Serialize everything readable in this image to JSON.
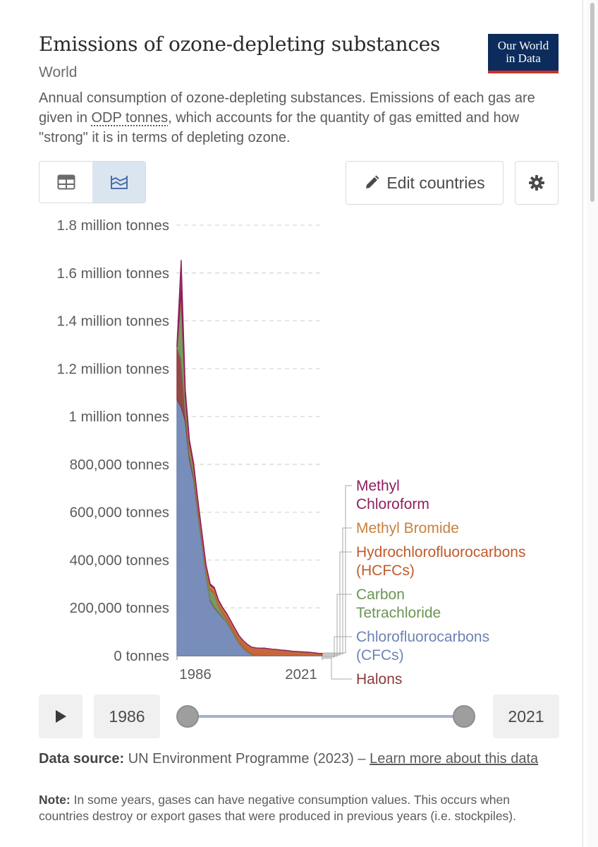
{
  "header": {
    "title": "Emissions of ozone-depleting substances",
    "entity": "World",
    "description_pre": "Annual consumption of ozone-depleting substances. Emissions of each gas are given in ",
    "description_link": "ODP tonnes",
    "description_post": ", which accounts for the quantity of gas emitted and how \"strong\" it is in terms of depleting ozone.",
    "logo_line1": "Our World",
    "logo_line2": "in Data"
  },
  "controls": {
    "edit_countries_label": "Edit countries",
    "table_icon": "table-icon",
    "chart_icon": "stacked-area-chart-icon",
    "edit_icon": "pencil-icon",
    "settings_icon": "gear-icon"
  },
  "chart_data": {
    "type": "area",
    "stacked": true,
    "x": [
      1986,
      1987,
      1988,
      1989,
      1990,
      1991,
      1992,
      1993,
      1994,
      1995,
      1996,
      1997,
      1998,
      1999,
      2000,
      2001,
      2002,
      2003,
      2004,
      2005,
      2006,
      2007,
      2008,
      2009,
      2010,
      2011,
      2012,
      2013,
      2014,
      2015,
      2016,
      2017,
      2018,
      2019,
      2020,
      2021
    ],
    "y_ticks": [
      "0 tonnes",
      "200,000 tonnes",
      "400,000 tonnes",
      "600,000 tonnes",
      "800,000 tonnes",
      "1 million tonnes",
      "1.2 million tonnes",
      "1.4 million tonnes",
      "1.6 million tonnes",
      "1.8 million tonnes"
    ],
    "x_ticks": [
      "1986",
      "2021"
    ],
    "ylim": [
      0,
      1800000
    ],
    "grid": "horizontal dashed",
    "legend": "right, inline labels",
    "series": [
      {
        "name": "Chlorofluorocarbons (CFCs)",
        "label_lines": [
          "Chlorofluorocarbons",
          "(CFCs)"
        ],
        "color": "#6d83b3",
        "values": [
          1070000,
          1040000,
          980000,
          820000,
          740000,
          600000,
          470000,
          340000,
          230000,
          200000,
          180000,
          160000,
          140000,
          110000,
          80000,
          50000,
          30000,
          15000,
          5000,
          1000,
          0,
          0,
          0,
          0,
          0,
          0,
          0,
          0,
          0,
          0,
          0,
          0,
          0,
          0,
          0,
          0
        ]
      },
      {
        "name": "Halons",
        "label_lines": [
          "Halons"
        ],
        "color": "#8c3a3a",
        "values": [
          220000,
          200000,
          40000,
          20000,
          15000,
          12000,
          8000,
          6000,
          5000,
          4000,
          3000,
          2500,
          2000,
          1800,
          1500,
          1200,
          1000,
          800,
          600,
          500,
          400,
          300,
          200,
          150,
          100,
          80,
          60,
          50,
          40,
          30,
          20,
          20,
          15,
          10,
          10,
          10
        ]
      },
      {
        "name": "Carbon Tetrachloride",
        "label_lines": [
          "Carbon",
          "Tetrachloride"
        ],
        "color": "#6b9456",
        "values": [
          0,
          260000,
          50000,
          30000,
          25000,
          18000,
          14000,
          10000,
          40000,
          55000,
          25000,
          15000,
          10000,
          8000,
          6000,
          5000,
          4000,
          3000,
          2000,
          1500,
          1000,
          800,
          600,
          500,
          400,
          300,
          300,
          200,
          200,
          200,
          100,
          100,
          100,
          100,
          100,
          100
        ]
      },
      {
        "name": "Hydrochlorofluorocarbons (HCFCs)",
        "label_lines": [
          "Hydrochlorofluorocarbons",
          "(HCFCs)"
        ],
        "color": "#c15a2c",
        "values": [
          2000,
          3000,
          4000,
          5000,
          6000,
          7000,
          8000,
          9000,
          10000,
          12000,
          13000,
          14000,
          16000,
          18000,
          20000,
          22000,
          24000,
          25000,
          26000,
          28000,
          29000,
          30000,
          28000,
          26000,
          25000,
          23000,
          22000,
          20000,
          18000,
          17000,
          16000,
          15000,
          14000,
          12000,
          10000,
          9000
        ]
      },
      {
        "name": "Methyl Bromide",
        "label_lines": [
          "Methyl Bromide"
        ],
        "color": "#c9813f",
        "values": [
          0,
          20000,
          15000,
          12000,
          10000,
          9000,
          9000,
          9000,
          10000,
          10000,
          9000,
          8000,
          7000,
          6000,
          5000,
          4000,
          3000,
          3000,
          2000,
          1500,
          1000,
          800,
          600,
          500,
          400,
          300,
          200,
          200,
          100,
          100,
          100,
          100,
          100,
          100,
          100,
          100
        ]
      },
      {
        "name": "Methyl Chloroform",
        "label_lines": [
          "Methyl",
          "Chloroform"
        ],
        "color": "#8e1f5e",
        "values": [
          10000,
          130000,
          22000,
          14000,
          10000,
          10000,
          8000,
          6000,
          5000,
          4000,
          3000,
          2000,
          1500,
          1000,
          800,
          500,
          400,
          300,
          200,
          100,
          100,
          100,
          50,
          50,
          50,
          0,
          0,
          0,
          0,
          0,
          0,
          0,
          0,
          0,
          0,
          0
        ]
      }
    ]
  },
  "timeline": {
    "start_year": "1986",
    "end_year": "2021",
    "start_fraction": 0,
    "end_fraction": 1,
    "play_icon": "play-icon"
  },
  "footer": {
    "source_label": "Data source:",
    "source_text": " UN Environment Programme (2023) – ",
    "source_link": "Learn more about this data",
    "note_label": "Note:",
    "note_text": " In some years, gases can have negative consumption values. This occurs when countries destroy or export gases that were produced in previous years (i.e. stockpiles)."
  }
}
